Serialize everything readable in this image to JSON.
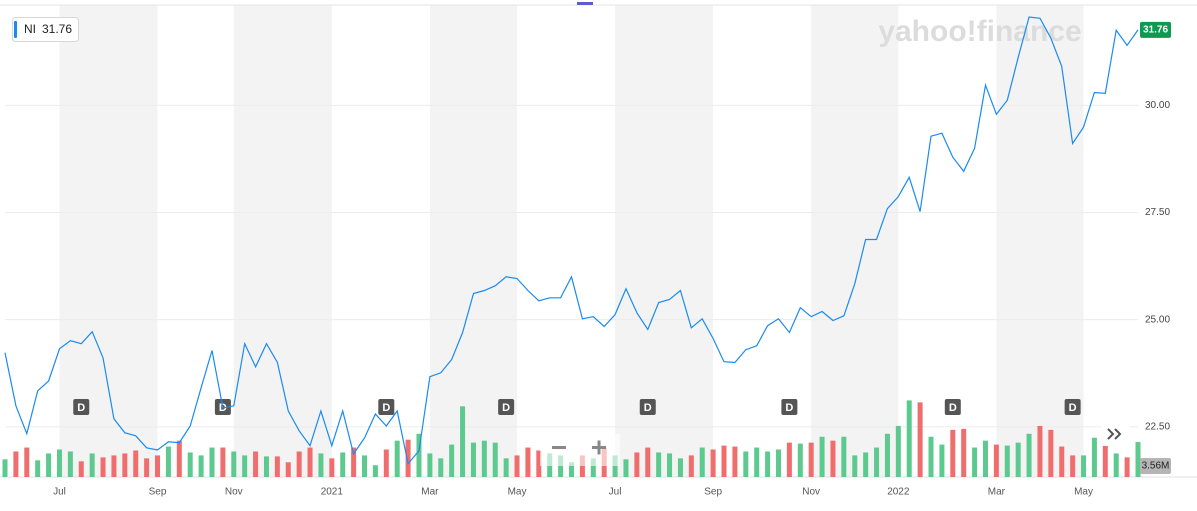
{
  "chart_data": {
    "type": "line",
    "brand": "yahoo!finance",
    "categories": [
      null,
      null,
      null,
      null,
      null,
      "Jul",
      null,
      null,
      null,
      null,
      null,
      null,
      null,
      null,
      "Sep",
      null,
      null,
      null,
      null,
      null,
      null,
      "Nov",
      null,
      null,
      null,
      null,
      null,
      null,
      null,
      null,
      "2021",
      null,
      null,
      null,
      null,
      null,
      null,
      null,
      null,
      "Mar",
      null,
      null,
      null,
      null,
      null,
      null,
      null,
      "May",
      null,
      null,
      null,
      null,
      null,
      null,
      null,
      null,
      "Jul",
      null,
      null,
      null,
      null,
      null,
      null,
      null,
      null,
      "Sep",
      null,
      null,
      null,
      null,
      null,
      null,
      null,
      null,
      "Nov",
      null,
      null,
      null,
      null,
      null,
      null,
      null,
      "2022",
      null,
      null,
      null,
      null,
      null,
      null,
      null,
      null,
      "Mar",
      null,
      null,
      null,
      null,
      null,
      null,
      null,
      "May",
      null,
      null,
      null,
      null,
      null
    ],
    "series": [
      {
        "name": "NI",
        "color": "#1a8bf0",
        "values": [
          24.23,
          22.99,
          22.34,
          23.34,
          23.57,
          24.32,
          24.51,
          24.44,
          24.72,
          24.11,
          22.69,
          22.36,
          22.29,
          22.01,
          21.96,
          22.15,
          22.13,
          22.52,
          23.41,
          24.28,
          22.94,
          22.99,
          24.44,
          23.9,
          24.44,
          24.0,
          22.87,
          22.41,
          22.06,
          22.87,
          22.06,
          22.87,
          21.87,
          22.24,
          22.8,
          22.52,
          22.87,
          21.64,
          21.94,
          23.67,
          23.76,
          24.07,
          24.7,
          25.61,
          25.68,
          25.79,
          26.0,
          25.96,
          25.68,
          25.44,
          25.51,
          25.51,
          26.0,
          25.02,
          25.07,
          24.84,
          25.12,
          25.72,
          25.16,
          24.77,
          25.4,
          25.47,
          25.68,
          24.81,
          25.02,
          24.56,
          24.02,
          24.0,
          24.3,
          24.39,
          24.86,
          25.02,
          24.7,
          25.28,
          25.07,
          25.19,
          24.98,
          25.09,
          25.84,
          26.87,
          26.87,
          27.59,
          27.87,
          28.32,
          27.52,
          29.28,
          29.35,
          28.79,
          28.46,
          29.0,
          30.47,
          29.79,
          30.12,
          31.12,
          32.06,
          32.03,
          31.57,
          30.91,
          29.11,
          29.49,
          30.3,
          30.28,
          31.75,
          31.4,
          31.76
        ]
      }
    ],
    "volume": {
      "up_color": "#5cc98e",
      "down_color": "#f06d6d",
      "vlim": [
        0,
        11
      ],
      "values": [
        1.8,
        2.6,
        3.0,
        1.7,
        2.4,
        2.8,
        2.6,
        1.6,
        2.4,
        2.0,
        2.2,
        2.4,
        2.7,
        1.9,
        2.2,
        3.1,
        3.7,
        2.5,
        2.2,
        3.0,
        3.0,
        2.6,
        2.2,
        2.6,
        2.1,
        2.1,
        1.5,
        2.6,
        3.0,
        2.4,
        1.9,
        2.5,
        3.0,
        2.2,
        1.2,
        2.8,
        3.7,
        3.8,
        4.4,
        2.4,
        1.9,
        3.3,
        7.2,
        3.5,
        3.7,
        3.5,
        1.9,
        2.2,
        3.0,
        2.7,
        2.4,
        2.2,
        1.5,
        2.2,
        1.9,
        3.0,
        2.2,
        1.8,
        2.5,
        3.0,
        2.5,
        2.4,
        1.9,
        2.2,
        3.0,
        2.8,
        3.2,
        3.1,
        2.6,
        3.0,
        2.6,
        2.8,
        3.5,
        3.4,
        3.5,
        4.1,
        3.7,
        4.1,
        2.2,
        2.5,
        3.0,
        4.4,
        5.2,
        7.8,
        7.6,
        4.1,
        3.3,
        4.8,
        4.9,
        3.0,
        3.7,
        3.3,
        3.2,
        3.5,
        4.4,
        5.2,
        4.8,
        3.1,
        2.2,
        2.2,
        4.0,
        4.5,
        2.4,
        2.0,
        3.56
      ],
      "value_labels": [
        null,
        null,
        null,
        null,
        null,
        null,
        null,
        null,
        null,
        null,
        null,
        null,
        null,
        null,
        null,
        null,
        null,
        null,
        null,
        null,
        null,
        null,
        null,
        null,
        null,
        null,
        null,
        null,
        null,
        null,
        null,
        null,
        null,
        null,
        null,
        null,
        null,
        null,
        null,
        null,
        null,
        null,
        null,
        null,
        null,
        null,
        null,
        null,
        null,
        null,
        null,
        null,
        null,
        null,
        null,
        null,
        null,
        null,
        null,
        null,
        null,
        null,
        null,
        null,
        null,
        null,
        null,
        null,
        null,
        null,
        null,
        null,
        null,
        null,
        null,
        null,
        null,
        null,
        null,
        null,
        null,
        null,
        null,
        null,
        null,
        null,
        null,
        null,
        null,
        null,
        null,
        null,
        null,
        null,
        null,
        null,
        null,
        null,
        null,
        null,
        null,
        null,
        null,
        null,
        "3.56M"
      ]
    },
    "events": [
      {
        "label": "D",
        "at": 7
      },
      {
        "label": "D",
        "at": 20
      },
      {
        "label": "D",
        "at": 35
      },
      {
        "label": "D",
        "at": 46
      },
      {
        "label": "D",
        "at": 59
      },
      {
        "label": "D",
        "at": 72
      },
      {
        "label": "D",
        "at": 87
      },
      {
        "label": "D",
        "at": 98
      }
    ],
    "ylim": [
      21.33,
      32.34
    ],
    "yticks": [
      {
        "value": 22.5,
        "label": "22.50"
      },
      {
        "value": 25,
        "label": "25.00"
      },
      {
        "value": 27.5,
        "label": "27.50"
      },
      {
        "value": 30,
        "label": "30.00"
      }
    ],
    "grid": true
  }
}
